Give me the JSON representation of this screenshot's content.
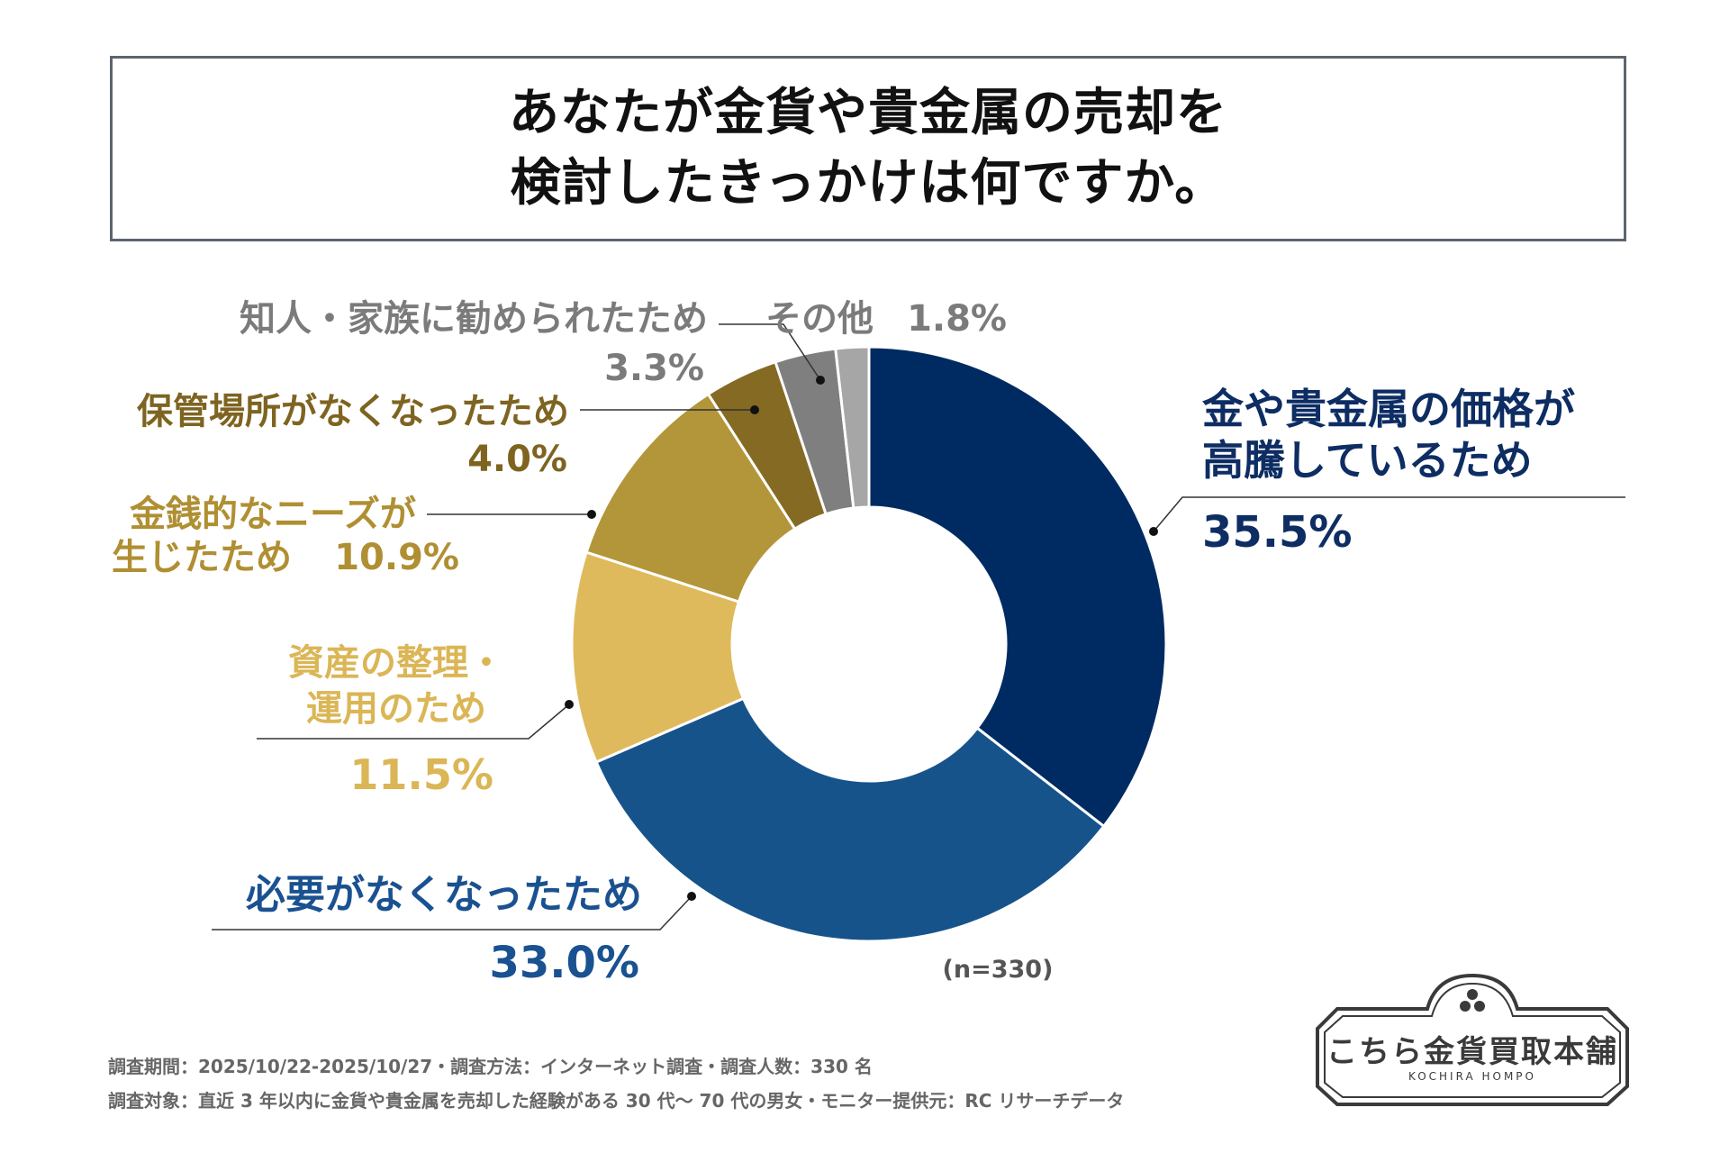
{
  "title": {
    "line1": "あなたが金貨や貴金属の売却を",
    "line2": "検討したきっかけは何ですか。"
  },
  "chart_data": {
    "type": "pie",
    "style": "donut",
    "slices": [
      {
        "line1": "金や貴金属の価格が",
        "line2": "高騰しているため",
        "pct_label": "35.5%",
        "value": 35.5,
        "color": "#002b62",
        "text_color": "#0d2d63"
      },
      {
        "line1": "必要がなくなったため",
        "line2": "",
        "pct_label": "33.0%",
        "value": 33.0,
        "color": "#17538b",
        "text_color": "#1a5190"
      },
      {
        "line1": "資産の整理・",
        "line2": "運用のため",
        "pct_label": "11.5%",
        "value": 11.5,
        "color": "#dfba5c",
        "text_color": "#dbb656"
      },
      {
        "line1": "金銭的なニーズが",
        "line2": "生じたため",
        "pct_label": "10.9%",
        "value": 10.9,
        "color": "#b3953a",
        "text_color": "#b08f33"
      },
      {
        "line1": "保管場所がなくなったため",
        "line2": "",
        "pct_label": "4.0%",
        "value": 4.0,
        "color": "#846a23",
        "text_color": "#7e6420"
      },
      {
        "line1": "知人・家族に勧められたため",
        "line2": "",
        "pct_label": "3.3%",
        "value": 3.3,
        "color": "#7f7f7f",
        "text_color": "#7b7b7b"
      },
      {
        "line1": "その他",
        "line2": "",
        "pct_label": "1.8%",
        "value": 1.8,
        "color": "#a6a6a6",
        "text_color": "#7b7b7b"
      }
    ],
    "sample_size": "(n=330)"
  },
  "footer": {
    "line1": "調査期間：2025/10/22-2025/10/27・調査方法：インターネット調査・調査人数：330 名",
    "line2": "調査対象：直近 3 年以内に金貨や貴金属を売却した経験がある 30 代～ 70 代の男女・モニター提供元：RC リサーチデータ"
  },
  "logo": {
    "name": "こちら金貨買取本舗",
    "sub": "KOCHIRA HOMPO"
  }
}
